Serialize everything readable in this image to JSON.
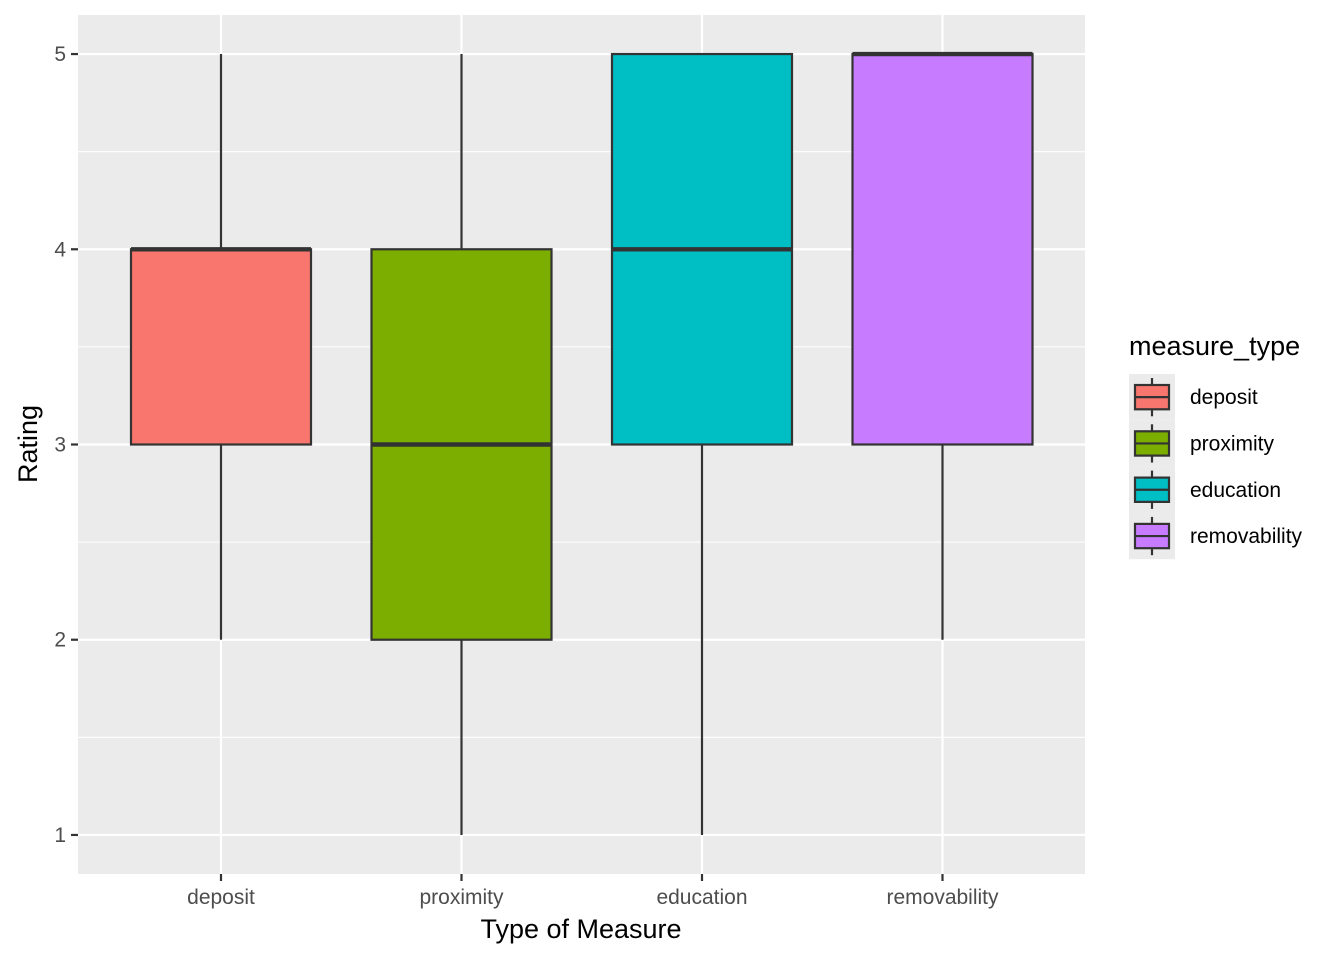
{
  "chart_data": {
    "type": "boxplot",
    "title": "",
    "xlabel": "Type of Measure",
    "ylabel": "Rating",
    "ylim": [
      0.8,
      5.2
    ],
    "y_ticks": [
      1,
      2,
      3,
      4,
      5
    ],
    "categories": [
      "deposit",
      "proximity",
      "education",
      "removability"
    ],
    "boxes": [
      {
        "category": "deposit",
        "min": 2,
        "q1": 3,
        "median": 4,
        "q3": 4,
        "max": 5,
        "color": "#F8766D"
      },
      {
        "category": "proximity",
        "min": 1,
        "q1": 2,
        "median": 3,
        "q3": 4,
        "max": 5,
        "color": "#7CAE00"
      },
      {
        "category": "education",
        "min": 1,
        "q1": 3,
        "median": 4,
        "q3": 5,
        "max": 5,
        "color": "#00BFC4"
      },
      {
        "category": "removability",
        "min": 2,
        "q1": 3,
        "median": 5,
        "q3": 5,
        "max": 5,
        "color": "#C77CFF"
      }
    ],
    "grid": true,
    "panel_background": "#EBEBEB",
    "legend": {
      "title": "measure_type",
      "position": "right",
      "entries": [
        "deposit",
        "proximity",
        "education",
        "removability"
      ]
    }
  }
}
